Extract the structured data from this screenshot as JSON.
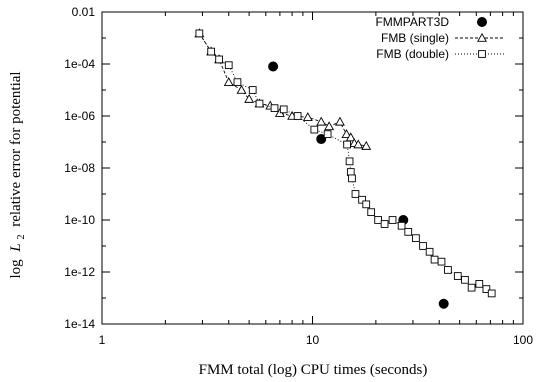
{
  "chart_data": {
    "type": "scatter",
    "xlabel": "FMM total (log) CPU times (seconds)",
    "ylabel": "relative error for potential",
    "ylabel_prefix": "log",
    "ylabel_math": "L",
    "ylabel_sub": "2",
    "xscale": "log",
    "yscale": "log",
    "xlim": [
      1,
      100
    ],
    "ylim": [
      1e-14,
      0.01
    ],
    "x_ticks": [
      {
        "value": 1,
        "label": "1"
      },
      {
        "value": 10,
        "label": "10"
      },
      {
        "value": 100,
        "label": "100"
      }
    ],
    "y_ticks": [
      {
        "value": 0.01,
        "label": "0.01"
      },
      {
        "value": 0.0001,
        "label": "1e-04"
      },
      {
        "value": 1e-06,
        "label": "1e-06"
      },
      {
        "value": 1e-08,
        "label": "1e-08"
      },
      {
        "value": 1e-10,
        "label": "1e-10"
      },
      {
        "value": 1e-12,
        "label": "1e-12"
      },
      {
        "value": 1e-14,
        "label": "1e-14"
      }
    ],
    "grid": false,
    "legend_position": "top-right",
    "series": [
      {
        "name": "FMMPART3D",
        "marker": "filled-circle",
        "line": "none",
        "color": "#000000",
        "points": [
          [
            6.5,
            8e-05
          ],
          [
            11.0,
            1.3e-07
          ],
          [
            27.0,
            1e-10
          ],
          [
            42.0,
            6e-14
          ]
        ]
      },
      {
        "name": "FMB (single)",
        "marker": "open-triangle",
        "line": "dashed",
        "color": "#000000",
        "points": [
          [
            2.9,
            0.0015
          ],
          [
            3.3,
            0.0003
          ],
          [
            3.6,
            0.00015
          ],
          [
            4.0,
            2e-05
          ],
          [
            4.6,
            1e-05
          ],
          [
            5.0,
            4.5e-06
          ],
          [
            5.6,
            3e-06
          ],
          [
            6.3,
            2.5e-06
          ],
          [
            7.0,
            1.3e-06
          ],
          [
            8.0,
            1e-06
          ],
          [
            9.5,
            9e-07
          ],
          [
            11.0,
            6e-07
          ],
          [
            12.0,
            4e-07
          ],
          [
            13.5,
            6e-07
          ],
          [
            14.5,
            2e-07
          ],
          [
            15.2,
            1.5e-07
          ],
          [
            15.8,
            9e-08
          ],
          [
            16.5,
            8e-08
          ],
          [
            18.0,
            7e-08
          ]
        ]
      },
      {
        "name": "FMB (double)",
        "marker": "open-square",
        "line": "dotted",
        "color": "#000000",
        "points": [
          [
            2.9,
            0.0015
          ],
          [
            3.3,
            0.0003
          ],
          [
            3.6,
            0.00015
          ],
          [
            4.0,
            9e-05
          ],
          [
            4.4,
            2e-05
          ],
          [
            5.2,
            1e-05
          ],
          [
            5.6,
            3e-06
          ],
          [
            6.6,
            2e-06
          ],
          [
            7.3,
            1.8e-06
          ],
          [
            8.5,
            1e-06
          ],
          [
            10.2,
            3e-07
          ],
          [
            11.8,
            2e-07
          ],
          [
            14.6,
            8e-08
          ],
          [
            15.0,
            1.8e-08
          ],
          [
            15.2,
            7e-09
          ],
          [
            15.4,
            4e-09
          ],
          [
            16.0,
            1e-09
          ],
          [
            17.2,
            6e-10
          ],
          [
            18.0,
            4e-10
          ],
          [
            19.0,
            2e-10
          ],
          [
            20.5,
            1e-10
          ],
          [
            22.0,
            7e-11
          ],
          [
            24.0,
            1e-10
          ],
          [
            26.5,
            6e-11
          ],
          [
            28.5,
            3.5e-11
          ],
          [
            31.0,
            2e-11
          ],
          [
            33.5,
            1e-11
          ],
          [
            36.0,
            6e-12
          ],
          [
            38.0,
            3e-12
          ],
          [
            41.0,
            2.5e-12
          ],
          [
            44.0,
            1.2e-12
          ],
          [
            49.0,
            7e-13
          ],
          [
            53.0,
            5e-13
          ],
          [
            57.0,
            2.5e-13
          ],
          [
            62.0,
            3.5e-13
          ],
          [
            67.0,
            2.2e-13
          ],
          [
            71.0,
            1.5e-13
          ]
        ]
      }
    ]
  }
}
